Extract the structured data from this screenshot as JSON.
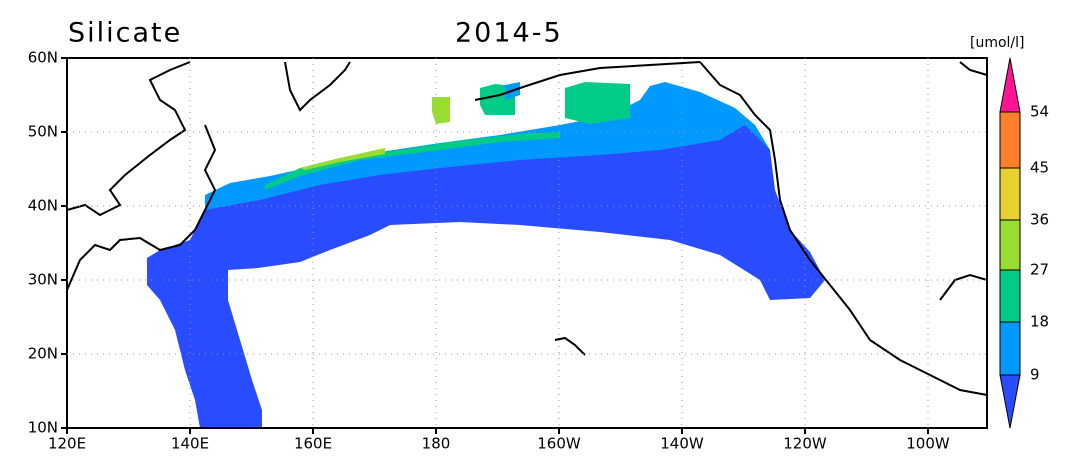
{
  "header": {
    "title": "Silicate",
    "date": "2014-5"
  },
  "colorbar": {
    "unit": "[umol/l]",
    "labels": [
      "54",
      "45",
      "36",
      "27",
      "18",
      "9"
    ]
  },
  "axes": {
    "x_labels": [
      "120E",
      "140E",
      "160E",
      "180",
      "160W",
      "140W",
      "120W",
      "100W"
    ],
    "y_labels": [
      "60N",
      "50N",
      "40N",
      "30N",
      "20N",
      "10N"
    ]
  }
}
